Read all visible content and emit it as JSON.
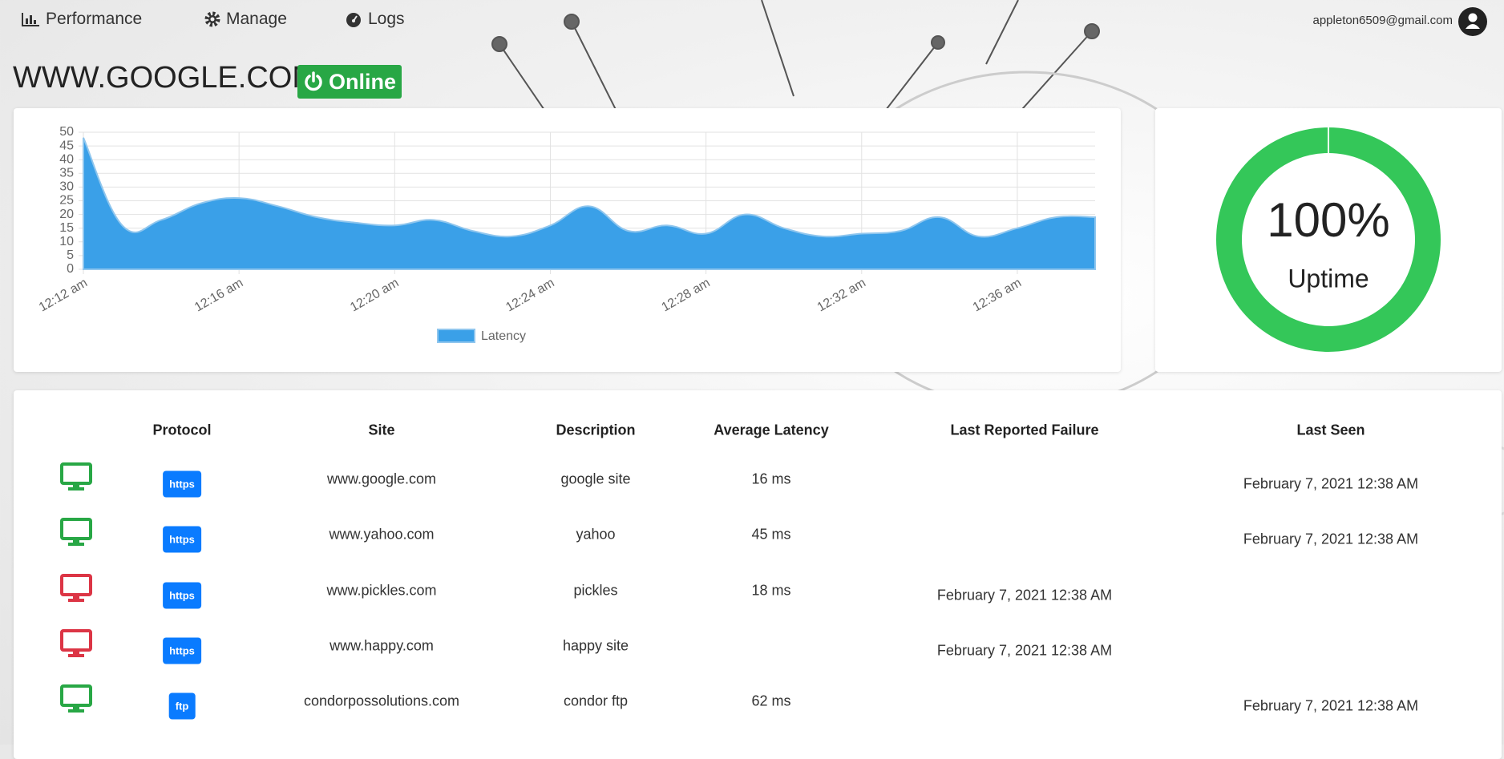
{
  "nav": [
    "Performance",
    "Manage",
    "Logs"
  ],
  "user_email": "appleton6509@gmail.com",
  "site": {
    "title": "WWW.GOOGLE.COM",
    "status": "Online"
  },
  "chart_data": {
    "type": "area",
    "categories": [
      "12:12 am",
      null,
      null,
      null,
      "12:16 am",
      null,
      null,
      null,
      "12:20 am",
      null,
      null,
      null,
      "12:24 am",
      null,
      null,
      null,
      "12:28 am",
      null,
      null,
      null,
      "12:32 am",
      null,
      null,
      null,
      "12:36 am",
      null,
      null
    ],
    "series": [
      {
        "name": "Latency",
        "color": "#3aa0e8",
        "values": [
          48,
          16,
          18,
          24,
          26,
          23,
          19,
          17,
          16,
          18,
          14,
          12,
          16,
          23,
          14,
          16,
          13,
          20,
          15,
          12,
          13,
          14,
          19,
          12,
          15,
          19,
          19
        ]
      }
    ],
    "ylim": [
      0,
      50
    ],
    "yticks": [
      0,
      5,
      10,
      15,
      20,
      25,
      30,
      35,
      40,
      45,
      50
    ],
    "grid": true
  },
  "uptime": {
    "value": 100,
    "label": "100%",
    "caption": "Uptime",
    "color": "#34c759"
  },
  "table": {
    "headers": [
      "Protocol",
      "Site",
      "Description",
      "Average Latency",
      "Last Reported Failure",
      "Last Seen"
    ],
    "rows": [
      {
        "status_color": "#28a745",
        "protocol": "https",
        "site": "www.google.com",
        "description": "google site",
        "average_latency": "16 ms",
        "last_reported_failure": null,
        "last_seen": "February 7, 2021 12:38 AM"
      },
      {
        "status_color": "#28a745",
        "protocol": "https",
        "site": "www.yahoo.com",
        "description": "yahoo",
        "average_latency": "45 ms",
        "last_reported_failure": null,
        "last_seen": "February 7, 2021 12:38 AM"
      },
      {
        "status_color": "#dc3545",
        "protocol": "https",
        "site": "www.pickles.com",
        "description": "pickles",
        "average_latency": "18 ms",
        "last_reported_failure": "February 7, 2021 12:38 AM",
        "last_seen": null
      },
      {
        "status_color": "#dc3545",
        "protocol": "https",
        "site": "www.happy.com",
        "description": "happy site",
        "average_latency": null,
        "last_reported_failure": "February 7, 2021 12:38 AM",
        "last_seen": null
      },
      {
        "status_color": "#28a745",
        "protocol": "ftp",
        "site": "condorpossolutions.com",
        "description": "condor ftp",
        "average_latency": "62 ms",
        "last_reported_failure": null,
        "last_seen": "February 7, 2021 12:38 AM"
      }
    ]
  }
}
